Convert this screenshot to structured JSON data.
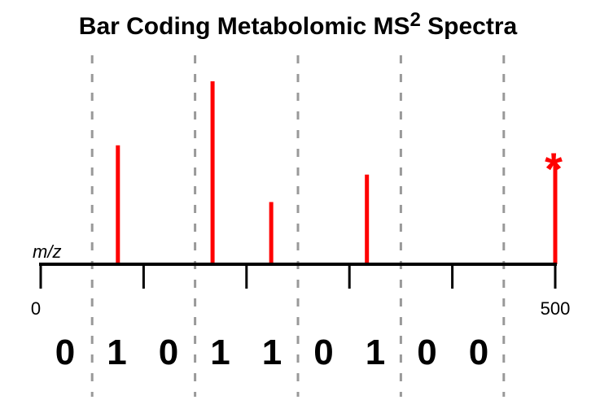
{
  "title": {
    "main": "Bar Coding Metabolomic MS",
    "superscript": "2",
    "suffix": " Spectra"
  },
  "colors": {
    "peak": "#ff0000",
    "axis": "#000000",
    "bin_divider": "#999999"
  },
  "chart_data": {
    "type": "bar",
    "x_axis": {
      "label": "m/z",
      "min": 0,
      "max": 500,
      "tick_labels": [
        "0",
        "500"
      ],
      "major_ticks": [
        0,
        100,
        200,
        300,
        400,
        500
      ]
    },
    "bin_dividers": [
      50,
      150,
      250,
      350,
      450
    ],
    "series": [
      {
        "values": [
          {
            "mz": 75,
            "intensity": 0.65
          },
          {
            "mz": 167,
            "intensity": 1.0
          },
          {
            "mz": 224,
            "intensity": 0.34
          },
          {
            "mz": 317,
            "intensity": 0.49
          },
          {
            "mz": 500,
            "intensity": 0.57
          }
        ]
      }
    ],
    "annotations": [
      {
        "text": "*",
        "mz": 500
      }
    ],
    "barcode": [
      "0",
      "1",
      "0",
      "1",
      "1",
      "0",
      "1",
      "0",
      "0"
    ]
  }
}
